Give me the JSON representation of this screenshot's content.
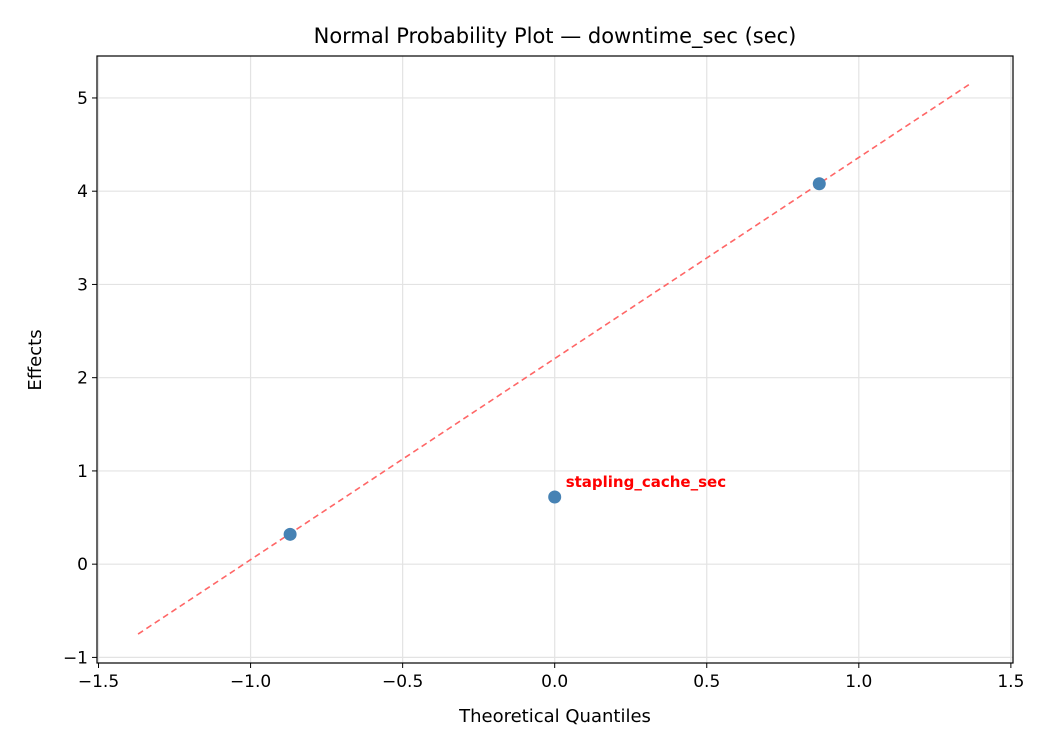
{
  "chart_data": {
    "type": "scatter",
    "title": "Normal Probability Plot — downtime_sec (sec)",
    "xlabel": "Theoretical Quantiles",
    "ylabel": "Effects",
    "xlim": [
      -1.505,
      1.507
    ],
    "ylim": [
      -1.06,
      5.45
    ],
    "xticks": [
      -1.5,
      -1.0,
      -0.5,
      0.0,
      0.5,
      1.0,
      1.5
    ],
    "xtick_labels": [
      "−1.5",
      "−1.0",
      "−0.5",
      "0.0",
      "0.5",
      "1.0",
      "1.5"
    ],
    "yticks": [
      -1,
      0,
      1,
      2,
      3,
      4,
      5
    ],
    "ytick_labels": [
      "−1",
      "0",
      "1",
      "2",
      "3",
      "4",
      "5"
    ],
    "grid": true,
    "points": [
      {
        "x": -0.87,
        "y": 0.32
      },
      {
        "x": 0.0,
        "y": 0.72,
        "label": "stapling_cache_sec"
      },
      {
        "x": 0.87,
        "y": 4.08
      }
    ],
    "reference_line": {
      "x": [
        -1.37,
        1.37
      ],
      "y": [
        -0.75,
        5.16
      ],
      "style": "dashed"
    },
    "colors": {
      "points": "#4682b4",
      "line": "#ff6666",
      "annotation": "#ff0000"
    }
  }
}
